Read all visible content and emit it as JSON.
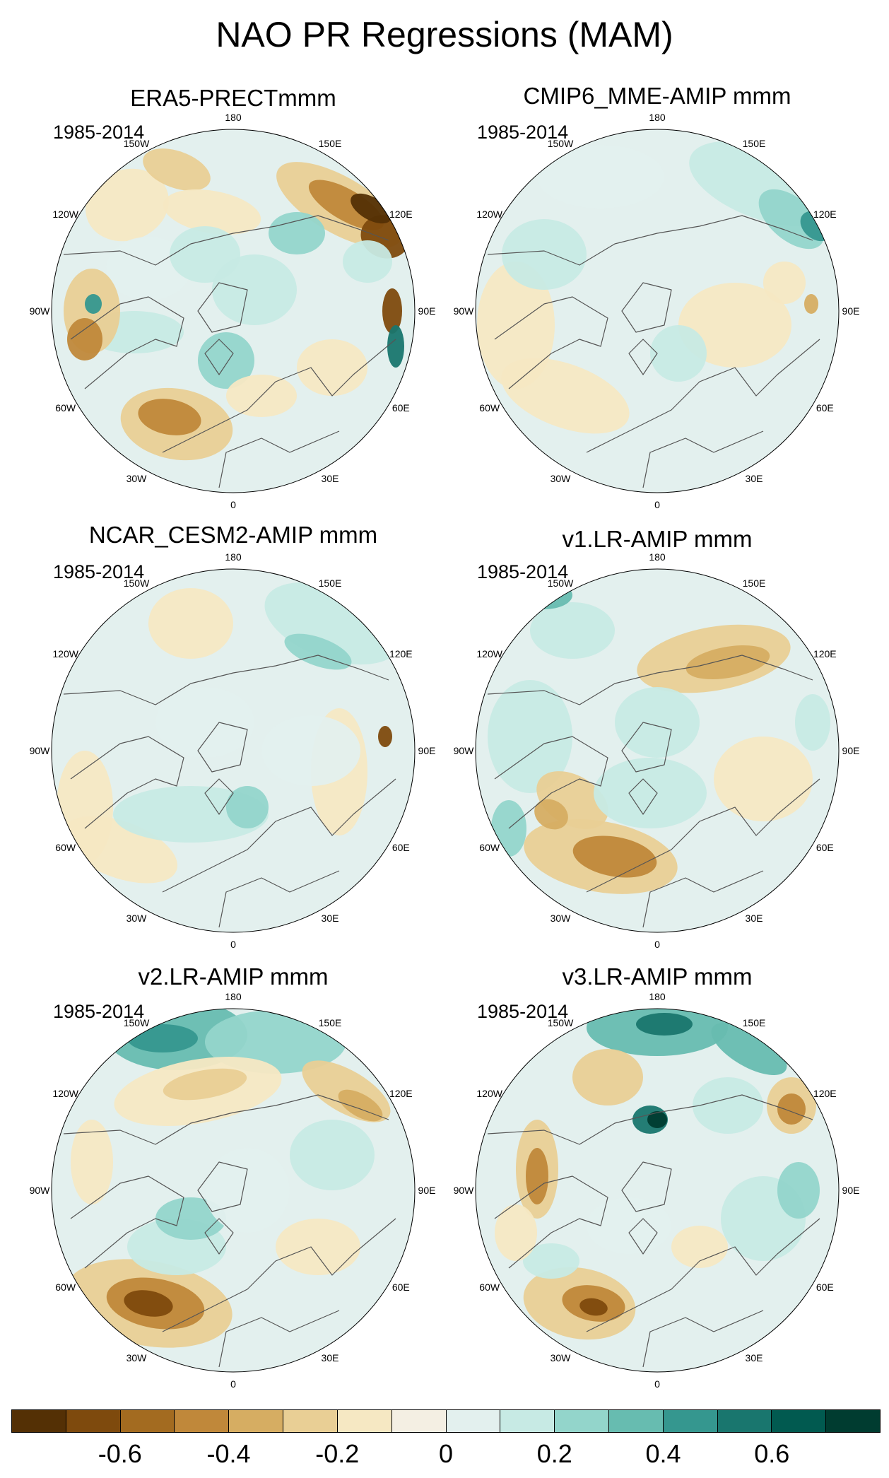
{
  "figure": {
    "title": "NAO PR Regressions (MAM)"
  },
  "panels": [
    {
      "title": "ERA5-PRECTmmm",
      "period": "1985-2014",
      "pattern": "era5"
    },
    {
      "title": "CMIP6_MME-AMIP  mmm",
      "period": "1985-2014",
      "pattern": "cmip6"
    },
    {
      "title": "NCAR_CESM2-AMIP  mmm",
      "period": "1985-2014",
      "pattern": "cesm2"
    },
    {
      "title": "v1.LR-AMIP  mmm",
      "period": "1985-2014",
      "pattern": "v1"
    },
    {
      "title": "v2.LR-AMIP  mmm",
      "period": "1985-2014",
      "pattern": "v2"
    },
    {
      "title": "v3.LR-AMIP  mmm",
      "period": "1985-2014",
      "pattern": "v3"
    }
  ],
  "longitude_labels": [
    "180",
    "150E",
    "120E",
    "90E",
    "60E",
    "30E",
    "0",
    "30W",
    "60W",
    "90W",
    "120W",
    "150W"
  ],
  "colorbar": {
    "colors": [
      "#543005",
      "#7e4a0d",
      "#a36b20",
      "#c0883a",
      "#d6ad62",
      "#e9cf95",
      "#f6e8c3",
      "#f4efe3",
      "#e3f0ee",
      "#c7eae4",
      "#93d5cb",
      "#67bcb0",
      "#35978f",
      "#19766e",
      "#015a50",
      "#003c30"
    ],
    "tick_labels": [
      "-0.6",
      "-0.4",
      "-0.2",
      "0",
      "0.2",
      "0.4",
      "0.6"
    ]
  }
}
